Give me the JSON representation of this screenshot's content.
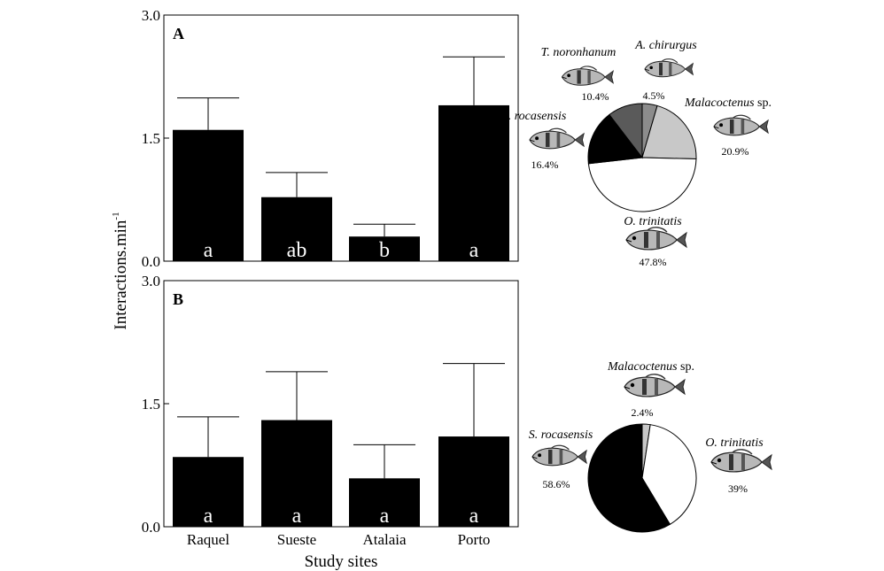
{
  "chart_data": [
    {
      "panel": "A",
      "type": "bar",
      "categories": [
        "Raquel",
        "Sueste",
        "Atalaia",
        "Porto"
      ],
      "values": [
        1.6,
        0.78,
        0.3,
        1.9
      ],
      "error_upper": [
        1.99,
        1.08,
        0.45,
        2.49
      ],
      "significance_letters": [
        "a",
        "ab",
        "b",
        "a"
      ],
      "ylabel": "Interactions.min",
      "ylabel_superscript": "-1",
      "ylim": [
        0,
        3.0
      ],
      "yticks": [
        "0.0",
        "1.5",
        "3.0"
      ],
      "bar_color": "#000000"
    },
    {
      "panel": "B",
      "type": "bar",
      "categories": [
        "Raquel",
        "Sueste",
        "Atalaia",
        "Porto"
      ],
      "values": [
        0.85,
        1.3,
        0.59,
        1.1
      ],
      "error_upper": [
        1.34,
        1.89,
        1.0,
        1.99
      ],
      "significance_letters": [
        "a",
        "a",
        "a",
        "a"
      ],
      "xlabel": "Study sites",
      "ylabel": "Interactions.min",
      "ylabel_superscript": "-1",
      "ylim": [
        0,
        3.0
      ],
      "yticks": [
        "0.0",
        "1.5",
        "3.0"
      ],
      "bar_color": "#000000"
    },
    {
      "panel": "A",
      "type": "pie",
      "slices": [
        {
          "name": "A. chirurgus",
          "suffix": "",
          "value": 4.5,
          "label": "4.5%",
          "color": "#8c8c8c"
        },
        {
          "name": "Malacoctenus",
          "suffix": " sp.",
          "value": 20.9,
          "label": "20.9%",
          "color": "#c8c8c8"
        },
        {
          "name": "O. trinitatis",
          "suffix": "",
          "value": 47.8,
          "label": "47.8%",
          "color": "#ffffff"
        },
        {
          "name": "S. rocasensis",
          "suffix": "",
          "value": 16.4,
          "label": "16.4%",
          "color": "#000000"
        },
        {
          "name": "T. noronhanum",
          "suffix": "",
          "value": 10.4,
          "label": "10.4%",
          "color": "#5a5a5a"
        }
      ]
    },
    {
      "panel": "B",
      "type": "pie",
      "slices": [
        {
          "name": "Malacoctenus",
          "suffix": " sp.",
          "value": 2.4,
          "label": "2.4%",
          "color": "#c8c8c8"
        },
        {
          "name": "O. trinitatis",
          "suffix": "",
          "value": 39,
          "label": "39%",
          "color": "#ffffff"
        },
        {
          "name": "S. rocasensis",
          "suffix": "",
          "value": 58.6,
          "label": "58.6%",
          "color": "#000000"
        }
      ]
    }
  ]
}
